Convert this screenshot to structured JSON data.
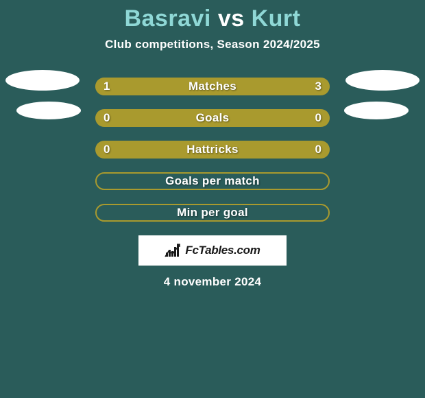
{
  "background_color": "#2a5c5a",
  "accent_color": "#a99a2e",
  "text_color": "#ffffff",
  "player_left_color": "#8fd8d6",
  "player_right_color": "#8fd8d6",
  "title": {
    "left": "Basravi",
    "vs": "vs",
    "right": "Kurt"
  },
  "subtitle": "Club competitions, Season 2024/2025",
  "stats": [
    {
      "label": "Matches",
      "left_value": "1",
      "right_value": "3",
      "left_fill_pct": 22,
      "right_fill_pct": 78,
      "filled": true,
      "has_oval_left": true,
      "has_oval_right": true,
      "oval_size": "large"
    },
    {
      "label": "Goals",
      "left_value": "0",
      "right_value": "0",
      "left_fill_pct": 0,
      "right_fill_pct": 100,
      "filled": true,
      "has_oval_left": true,
      "has_oval_right": true,
      "oval_size": "small"
    },
    {
      "label": "Hattricks",
      "left_value": "0",
      "right_value": "0",
      "left_fill_pct": 0,
      "right_fill_pct": 100,
      "filled": true,
      "has_oval_left": false,
      "has_oval_right": false
    },
    {
      "label": "Goals per match",
      "left_value": "",
      "right_value": "",
      "filled": false
    },
    {
      "label": "Min per goal",
      "left_value": "",
      "right_value": "",
      "filled": false
    }
  ],
  "logo": {
    "text": "FcTables.com",
    "icon_color": "#1a1a1a"
  },
  "date": "4 november 2024"
}
